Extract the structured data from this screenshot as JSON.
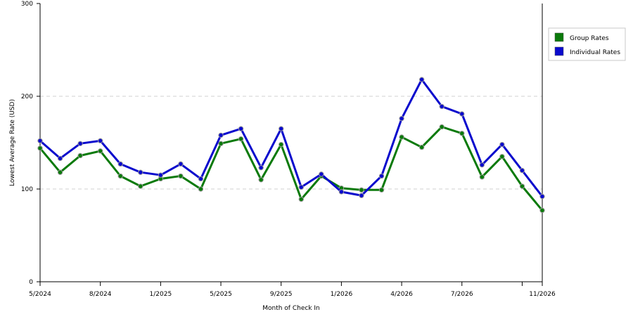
{
  "chart_data": {
    "type": "line",
    "xlabel": "Month of Check In",
    "ylabel": "Lowest Average Rate (USD)",
    "ylim": [
      0,
      300
    ],
    "yticks": [
      0,
      100,
      200,
      300
    ],
    "grid": "horizontal dashed",
    "legend_position": "top-right",
    "x_tick_labels": [
      {
        "index": 0,
        "label": "5/2024"
      },
      {
        "index": 3,
        "label": "8/2024"
      },
      {
        "index": 6,
        "label": "1/2025"
      },
      {
        "index": 9,
        "label": "5/2025"
      },
      {
        "index": 12,
        "label": "9/2025"
      },
      {
        "index": 15,
        "label": "1/2026"
      },
      {
        "index": 18,
        "label": "4/2026"
      },
      {
        "index": 21,
        "label": "7/2026"
      },
      {
        "index": 24,
        "label": ""
      },
      {
        "index": 25,
        "label": "11/2026"
      }
    ],
    "series": [
      {
        "name": "Group Rates",
        "color": "#0a7a0a",
        "values": [
          144,
          118,
          136,
          141,
          114,
          103,
          111,
          114,
          100,
          149,
          154,
          110,
          148,
          89,
          114,
          101,
          99,
          99,
          156,
          145,
          167,
          160,
          113,
          135,
          103,
          77
        ]
      },
      {
        "name": "Individual Rates",
        "color": "#0a0acd",
        "values": [
          152,
          133,
          149,
          152,
          127,
          118,
          115,
          127,
          111,
          158,
          165,
          123,
          165,
          102,
          116,
          97,
          93,
          114,
          176,
          218,
          189,
          181,
          126,
          148,
          120,
          92
        ]
      }
    ]
  }
}
